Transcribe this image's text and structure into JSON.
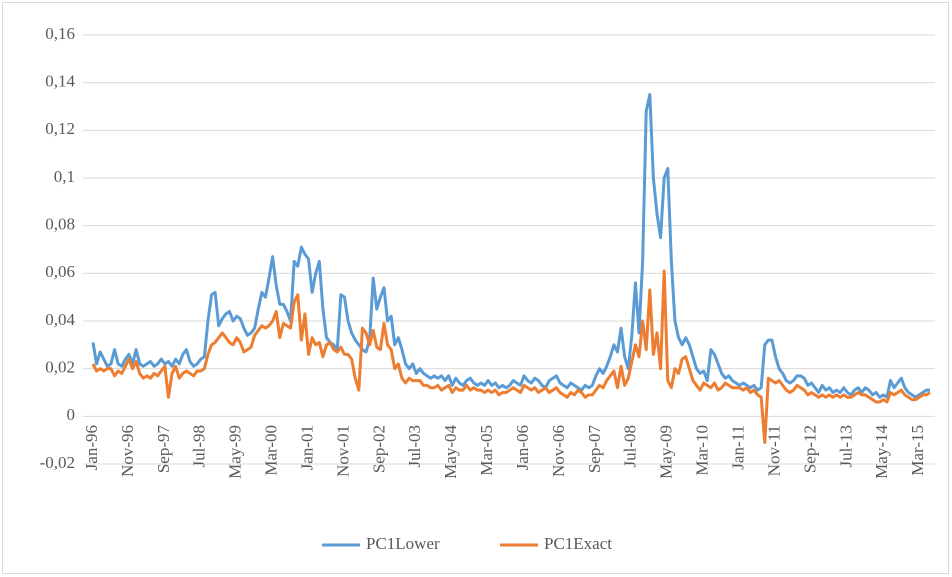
{
  "chart_data": {
    "type": "line",
    "categories": [
      "Jan-96",
      null,
      null,
      null,
      null,
      null,
      null,
      null,
      null,
      null,
      "Nov-96",
      null,
      null,
      null,
      null,
      null,
      null,
      null,
      null,
      null,
      "Sep-97",
      null,
      null,
      null,
      null,
      null,
      null,
      null,
      null,
      null,
      "Jul-98",
      null,
      null,
      null,
      null,
      null,
      null,
      null,
      null,
      null,
      "May-99",
      null,
      null,
      null,
      null,
      null,
      null,
      null,
      null,
      null,
      "Mar-00",
      null,
      null,
      null,
      null,
      null,
      null,
      null,
      null,
      null,
      "Jan-01",
      null,
      null,
      null,
      null,
      null,
      null,
      null,
      null,
      null,
      "Nov-01",
      null,
      null,
      null,
      null,
      null,
      null,
      null,
      null,
      null,
      "Sep-02",
      null,
      null,
      null,
      null,
      null,
      null,
      null,
      null,
      null,
      "Jul-03",
      null,
      null,
      null,
      null,
      null,
      null,
      null,
      null,
      null,
      "May-04",
      null,
      null,
      null,
      null,
      null,
      null,
      null,
      null,
      null,
      "Mar-05",
      null,
      null,
      null,
      null,
      null,
      null,
      null,
      null,
      null,
      "Jan-06",
      null,
      null,
      null,
      null,
      null,
      null,
      null,
      null,
      null,
      "Nov-06",
      null,
      null,
      null,
      null,
      null,
      null,
      null,
      null,
      null,
      "Sep-07",
      null,
      null,
      null,
      null,
      null,
      null,
      null,
      null,
      null,
      "Jul-08",
      null,
      null,
      null,
      null,
      null,
      null,
      null,
      null,
      null,
      "May-09",
      null,
      null,
      null,
      null,
      null,
      null,
      null,
      null,
      null,
      "Mar-10",
      null,
      null,
      null,
      null,
      null,
      null,
      null,
      null,
      null,
      "Jan-11",
      null,
      null,
      null,
      null,
      null,
      null,
      null,
      null,
      null,
      "Nov-11",
      null,
      null,
      null,
      null,
      null,
      null,
      null,
      null,
      null,
      "Sep-12",
      null,
      null,
      null,
      null,
      null,
      null,
      null,
      null,
      null,
      "Jul-13",
      null,
      null,
      null,
      null,
      null,
      null,
      null,
      null,
      null,
      "May-14",
      null,
      null,
      null,
      null,
      null,
      null,
      null,
      null,
      null,
      "Mar-15",
      null,
      null,
      null
    ],
    "series": [
      {
        "name": "PC1Lower",
        "color": "#5b9bd5",
        "values": [
          0.031,
          0.022,
          0.027,
          0.024,
          0.021,
          0.022,
          0.028,
          0.022,
          0.021,
          0.024,
          0.026,
          0.022,
          0.028,
          0.022,
          0.021,
          0.022,
          0.023,
          0.021,
          0.022,
          0.024,
          0.022,
          0.023,
          0.021,
          0.024,
          0.022,
          0.026,
          0.028,
          0.023,
          0.021,
          0.022,
          0.024,
          0.025,
          0.04,
          0.051,
          0.052,
          0.038,
          0.041,
          0.043,
          0.044,
          0.04,
          0.042,
          0.041,
          0.037,
          0.034,
          0.035,
          0.037,
          0.045,
          0.052,
          0.05,
          0.058,
          0.067,
          0.055,
          0.047,
          0.047,
          0.044,
          0.04,
          0.065,
          0.063,
          0.071,
          0.068,
          0.066,
          0.052,
          0.06,
          0.065,
          0.045,
          0.033,
          0.031,
          0.03,
          0.028,
          0.051,
          0.05,
          0.04,
          0.035,
          0.032,
          0.03,
          0.028,
          0.027,
          0.032,
          0.058,
          0.045,
          0.05,
          0.054,
          0.04,
          0.042,
          0.03,
          0.033,
          0.028,
          0.022,
          0.02,
          0.022,
          0.018,
          0.02,
          0.018,
          0.017,
          0.016,
          0.017,
          0.016,
          0.017,
          0.015,
          0.017,
          0.013,
          0.016,
          0.014,
          0.013,
          0.015,
          0.016,
          0.014,
          0.013,
          0.014,
          0.013,
          0.015,
          0.013,
          0.014,
          0.012,
          0.013,
          0.012,
          0.013,
          0.015,
          0.014,
          0.013,
          0.017,
          0.015,
          0.014,
          0.016,
          0.015,
          0.013,
          0.012,
          0.015,
          0.016,
          0.017,
          0.014,
          0.013,
          0.012,
          0.014,
          0.013,
          0.012,
          0.011,
          0.013,
          0.012,
          0.013,
          0.017,
          0.02,
          0.018,
          0.021,
          0.025,
          0.03,
          0.027,
          0.037,
          0.025,
          0.02,
          0.034,
          0.056,
          0.035,
          0.065,
          0.128,
          0.135,
          0.1,
          0.085,
          0.075,
          0.1,
          0.104,
          0.065,
          0.04,
          0.033,
          0.03,
          0.033,
          0.03,
          0.025,
          0.02,
          0.018,
          0.019,
          0.015,
          0.028,
          0.026,
          0.022,
          0.018,
          0.016,
          0.017,
          0.015,
          0.014,
          0.013,
          0.014,
          0.013,
          0.012,
          0.013,
          0.011,
          0.012,
          0.03,
          0.032,
          0.032,
          0.025,
          0.02,
          0.018,
          0.015,
          0.014,
          0.015,
          0.017,
          0.017,
          0.016,
          0.013,
          0.014,
          0.012,
          0.01,
          0.013,
          0.011,
          0.012,
          0.01,
          0.011,
          0.01,
          0.012,
          0.01,
          0.009,
          0.011,
          0.012,
          0.01,
          0.012,
          0.011,
          0.009,
          0.01,
          0.008,
          0.009,
          0.008,
          0.015,
          0.012,
          0.014,
          0.016,
          0.012,
          0.01,
          0.009,
          0.008,
          0.009,
          0.01,
          0.011,
          0.011
        ]
      },
      {
        "name": "PC1Exact",
        "color": "#ed7d31",
        "values": [
          0.022,
          0.019,
          0.02,
          0.019,
          0.02,
          0.02,
          0.017,
          0.019,
          0.018,
          0.021,
          0.024,
          0.02,
          0.023,
          0.018,
          0.016,
          0.017,
          0.016,
          0.018,
          0.017,
          0.019,
          0.021,
          0.008,
          0.018,
          0.021,
          0.016,
          0.018,
          0.019,
          0.018,
          0.017,
          0.019,
          0.019,
          0.02,
          0.026,
          0.03,
          0.031,
          0.033,
          0.035,
          0.033,
          0.031,
          0.03,
          0.033,
          0.031,
          0.027,
          0.028,
          0.029,
          0.034,
          0.036,
          0.038,
          0.037,
          0.038,
          0.04,
          0.044,
          0.033,
          0.039,
          0.038,
          0.037,
          0.048,
          0.051,
          0.032,
          0.043,
          0.026,
          0.033,
          0.03,
          0.031,
          0.025,
          0.03,
          0.031,
          0.028,
          0.027,
          0.029,
          0.026,
          0.026,
          0.024,
          0.016,
          0.011,
          0.037,
          0.035,
          0.03,
          0.036,
          0.029,
          0.028,
          0.039,
          0.03,
          0.028,
          0.02,
          0.022,
          0.016,
          0.014,
          0.016,
          0.015,
          0.015,
          0.015,
          0.013,
          0.013,
          0.012,
          0.012,
          0.013,
          0.011,
          0.012,
          0.013,
          0.01,
          0.012,
          0.011,
          0.011,
          0.013,
          0.011,
          0.012,
          0.011,
          0.011,
          0.01,
          0.011,
          0.01,
          0.011,
          0.009,
          0.01,
          0.01,
          0.011,
          0.012,
          0.011,
          0.01,
          0.013,
          0.012,
          0.011,
          0.012,
          0.01,
          0.011,
          0.012,
          0.01,
          0.011,
          0.012,
          0.01,
          0.009,
          0.008,
          0.01,
          0.009,
          0.011,
          0.01,
          0.008,
          0.009,
          0.009,
          0.011,
          0.013,
          0.012,
          0.015,
          0.017,
          0.019,
          0.012,
          0.021,
          0.013,
          0.016,
          0.023,
          0.03,
          0.025,
          0.04,
          0.028,
          0.053,
          0.026,
          0.035,
          0.02,
          0.061,
          0.015,
          0.012,
          0.02,
          0.018,
          0.024,
          0.025,
          0.02,
          0.015,
          0.013,
          0.011,
          0.014,
          0.013,
          0.012,
          0.014,
          0.011,
          0.012,
          0.014,
          0.013,
          0.012,
          0.012,
          0.012,
          0.011,
          0.012,
          0.01,
          0.011,
          0.009,
          0.008,
          -0.011,
          0.016,
          0.015,
          0.014,
          0.015,
          0.013,
          0.011,
          0.01,
          0.011,
          0.013,
          0.012,
          0.011,
          0.009,
          0.01,
          0.009,
          0.008,
          0.009,
          0.008,
          0.009,
          0.008,
          0.009,
          0.008,
          0.009,
          0.008,
          0.008,
          0.009,
          0.01,
          0.009,
          0.009,
          0.008,
          0.007,
          0.006,
          0.006,
          0.007,
          0.006,
          0.01,
          0.009,
          0.01,
          0.011,
          0.009,
          0.008,
          0.007,
          0.007,
          0.008,
          0.009,
          0.009,
          0.01
        ]
      }
    ],
    "ylim": [
      -0.02,
      0.16
    ],
    "yticks": [
      {
        "value": -0.02,
        "label": "-0,02"
      },
      0,
      {
        "value": 0.02,
        "label": "0,02"
      },
      {
        "value": 0.04,
        "label": "0,04"
      },
      {
        "value": 0.06,
        "label": "0,06"
      },
      {
        "value": 0.08,
        "label": "0,08"
      },
      {
        "value": 0.1,
        "label": "0,1"
      },
      {
        "value": 0.12,
        "label": "0,12"
      },
      {
        "value": 0.14,
        "label": "0,14"
      },
      {
        "value": 0.16,
        "label": "0,16"
      }
    ],
    "grid": true,
    "legend": "bottom"
  }
}
